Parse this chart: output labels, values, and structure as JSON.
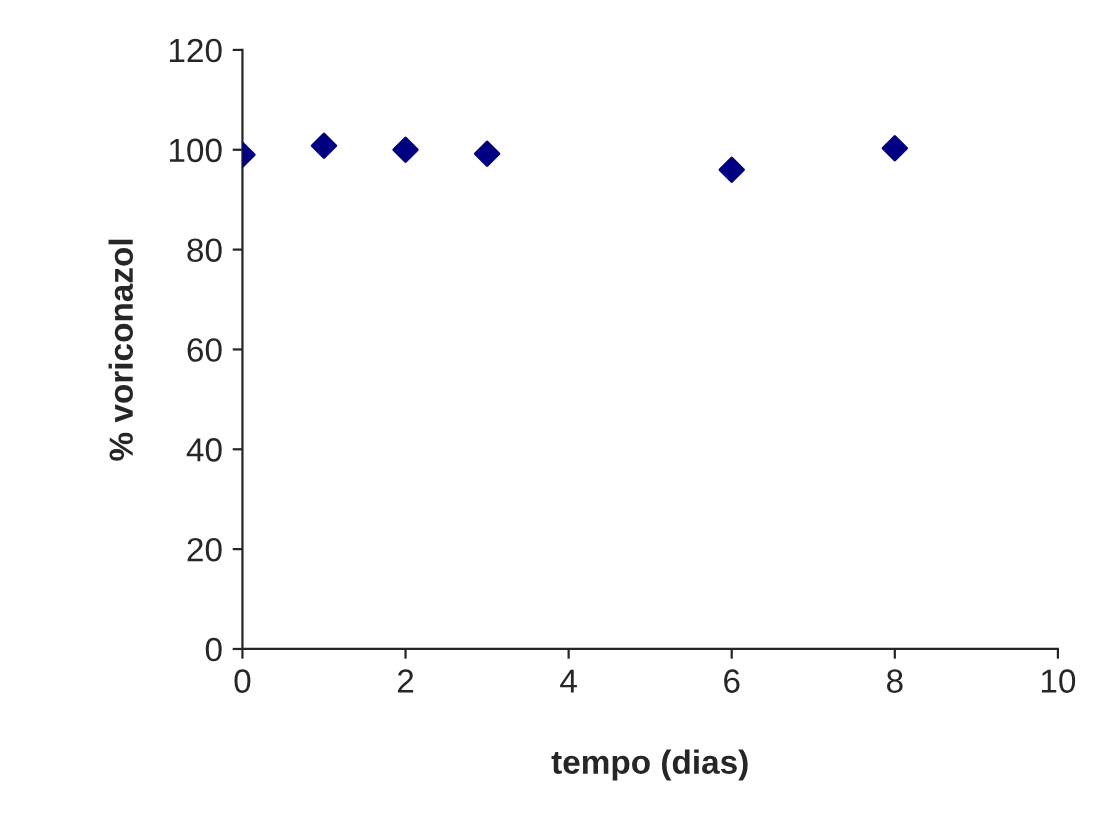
{
  "chart_data": {
    "type": "scatter",
    "xlabel": "tempo (dias)",
    "ylabel": "% voriconazol",
    "x": [
      0,
      1,
      2,
      3,
      6,
      8
    ],
    "series": [
      {
        "color": "#000080",
        "values": [
          99,
          100.8,
          100,
          99.2,
          96,
          100.3
        ]
      }
    ],
    "marker": "diamond",
    "xlim": [
      0,
      10
    ],
    "xticks": [
      0,
      2,
      4,
      6,
      8,
      10
    ],
    "ylim": [
      0,
      120
    ],
    "yticks": [
      0,
      20,
      40,
      60,
      80,
      100,
      120
    ],
    "grid": false,
    "legend": false
  }
}
